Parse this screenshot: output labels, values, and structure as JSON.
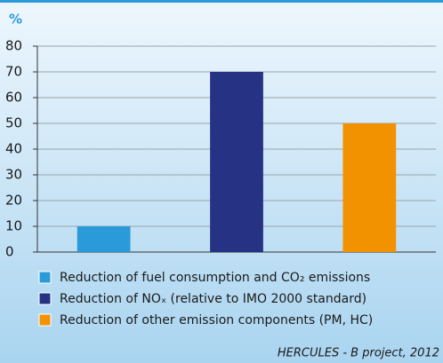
{
  "chart_data": {
    "type": "bar",
    "y_label": "%",
    "categories": [
      null,
      null,
      null
    ],
    "series": [
      {
        "name": "Reduction of fuel consumption and CO₂ emissions",
        "color": "#2a9bd8",
        "values": [
          10,
          null,
          null
        ]
      },
      {
        "name": "Reduction of NOₓ (relative to IMO 2000 standard)",
        "color": "#263283",
        "values": [
          null,
          70,
          null
        ]
      },
      {
        "name": "Reduction of other emission components (PM, HC)",
        "color": "#f39200",
        "values": [
          null,
          null,
          50
        ]
      }
    ],
    "ylim": [
      0,
      80
    ],
    "yticks": [
      0,
      10,
      20,
      30,
      40,
      50,
      60,
      70,
      80
    ],
    "grid": true,
    "source": "HERCULES - B project, 2012"
  }
}
